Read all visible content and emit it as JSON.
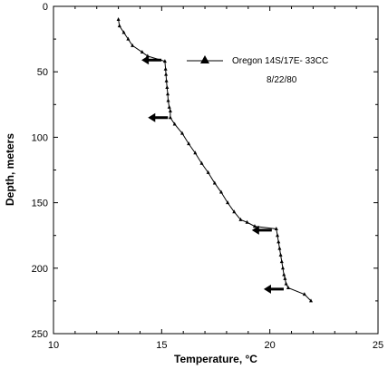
{
  "chart_data": {
    "type": "line",
    "xlabel": "Temperature, °C",
    "ylabel": "Depth, meters",
    "xlim": [
      10,
      25
    ],
    "ylim": [
      0,
      250
    ],
    "y_inverted": true,
    "x_ticks": [
      "10",
      "15",
      "20",
      "25"
    ],
    "y_ticks": [
      "0",
      "50",
      "100",
      "150",
      "200",
      "250"
    ],
    "grid": false,
    "legend_position": "top-right",
    "series": [
      {
        "name": "Oregon 14S/17E- 33CC",
        "marker": "triangle",
        "color": "#000000",
        "x": [
          13.0,
          13.05,
          13.25,
          13.45,
          13.65,
          14.1,
          14.35,
          15.15,
          15.18,
          15.2,
          15.22,
          15.25,
          15.28,
          15.3,
          15.35,
          15.4,
          15.4,
          15.6,
          15.95,
          16.25,
          16.55,
          16.85,
          17.15,
          17.45,
          17.75,
          18.05,
          18.35,
          18.65,
          18.95,
          19.3,
          20.3,
          20.35,
          20.4,
          20.45,
          20.5,
          20.55,
          20.6,
          20.65,
          20.7,
          20.75,
          20.85,
          21.6,
          21.9
        ],
        "y": [
          10,
          15,
          20,
          25,
          30,
          35,
          38,
          42,
          48,
          52,
          57,
          62,
          67,
          72,
          77,
          80,
          85,
          90,
          97,
          105,
          112,
          120,
          127,
          135,
          142,
          150,
          157,
          163,
          165,
          168,
          170,
          175,
          180,
          185,
          190,
          195,
          200,
          205,
          208,
          212,
          215,
          220,
          225
        ]
      }
    ],
    "annotations": [
      "8/22/80"
    ],
    "arrows": [
      {
        "x": 15.2,
        "y": 41
      },
      {
        "x": 15.5,
        "y": 85
      },
      {
        "x": 20.3,
        "y": 171
      },
      {
        "x": 20.85,
        "y": 216
      }
    ]
  }
}
